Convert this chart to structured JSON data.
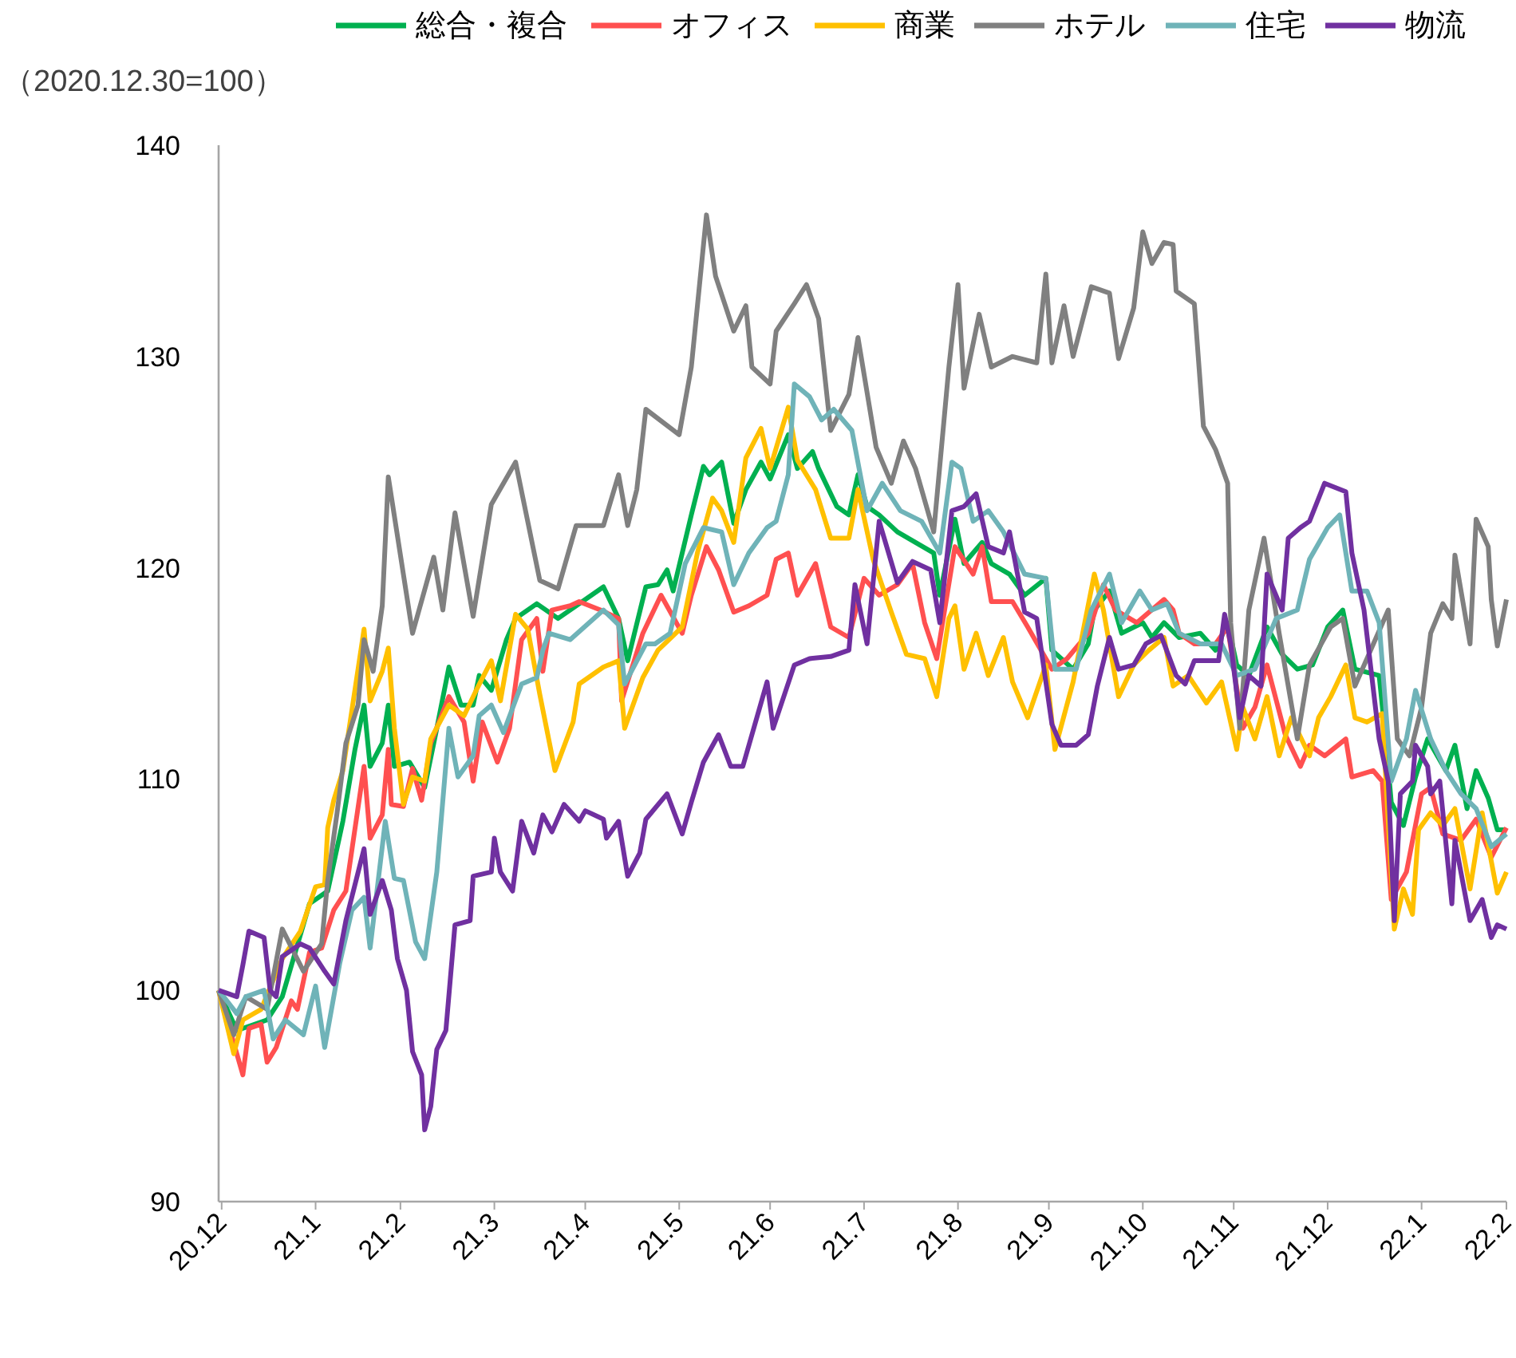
{
  "chart_data": {
    "type": "line",
    "ylabel": "（2020.12.30=100）",
    "legend": "top",
    "xlim": [
      "2020-12-30",
      "2022-02-28"
    ],
    "ylim": [
      90,
      140
    ],
    "yticks": [
      90,
      100,
      110,
      120,
      130,
      140
    ],
    "xticks": [
      {
        "value": "2020-12-31",
        "label": "20.12"
      },
      {
        "value": "2021-01-31",
        "label": "21.1"
      },
      {
        "value": "2021-02-28",
        "label": "21.2"
      },
      {
        "value": "2021-03-31",
        "label": "21.3"
      },
      {
        "value": "2021-04-30",
        "label": "21.4"
      },
      {
        "value": "2021-05-31",
        "label": "21.5"
      },
      {
        "value": "2021-06-30",
        "label": "21.6"
      },
      {
        "value": "2021-07-31",
        "label": "21.7"
      },
      {
        "value": "2021-08-31",
        "label": "21.8"
      },
      {
        "value": "2021-09-30",
        "label": "21.9"
      },
      {
        "value": "2021-10-31",
        "label": "21.10"
      },
      {
        "value": "2021-11-30",
        "label": "21.11"
      },
      {
        "value": "2021-12-31",
        "label": "21.12"
      },
      {
        "value": "2022-01-31",
        "label": "22.1"
      },
      {
        "value": "2022-02-28",
        "label": "22.2"
      }
    ],
    "series": [
      {
        "name": "総合・複合",
        "color": "#00b050",
        "x": [
          "2020-12-30",
          "2021-01-05",
          "2021-01-15",
          "2021-01-20",
          "2021-01-29",
          "2021-02-04",
          "2021-02-09",
          "2021-02-13",
          "2021-02-16",
          "2021-02-18",
          "2021-02-22",
          "2021-02-24",
          "2021-02-26",
          "2021-03-03",
          "2021-03-08",
          "2021-03-12",
          "2021-03-16",
          "2021-03-20",
          "2021-03-24",
          "2021-03-26",
          "2021-03-30",
          "2021-04-04",
          "2021-04-07",
          "2021-04-14",
          "2021-04-21",
          "2021-05-06",
          "2021-05-11",
          "2021-05-14",
          "2021-05-20",
          "2021-05-24",
          "2021-05-27",
          "2021-05-29",
          "2021-06-04",
          "2021-06-08",
          "2021-06-10",
          "2021-06-14",
          "2021-06-18",
          "2021-06-22",
          "2021-06-27",
          "2021-06-30",
          "2021-07-06",
          "2021-07-09",
          "2021-07-14",
          "2021-07-16",
          "2021-07-22",
          "2021-07-26",
          "2021-07-29",
          "2021-08-01",
          "2021-08-05",
          "2021-08-11",
          "2021-08-17",
          "2021-08-23",
          "2021-08-25",
          "2021-08-30",
          "2021-09-02",
          "2021-09-08",
          "2021-09-11",
          "2021-09-17",
          "2021-09-22",
          "2021-09-29",
          "2021-10-01",
          "2021-10-08",
          "2021-10-13",
          "2021-10-15",
          "2021-10-20",
          "2021-10-24",
          "2021-10-31",
          "2021-11-03",
          "2021-11-07",
          "2021-11-12",
          "2021-11-19",
          "2021-11-24",
          "2021-11-28",
          "2021-12-01",
          "2021-12-05",
          "2021-12-11",
          "2021-12-16",
          "2021-12-21",
          "2021-12-26",
          "2021-12-31",
          "2022-01-05",
          "2022-01-09",
          "2022-01-17",
          "2022-01-19",
          "2022-01-21",
          "2022-01-25",
          "2022-01-29",
          "2022-02-02",
          "2022-02-08",
          "2022-02-11",
          "2022-02-15",
          "2022-02-18",
          "2022-02-22",
          "2022-02-25",
          "2022-02-28"
        ],
        "values": [
          100,
          98.1,
          98.6,
          99.7,
          104.1,
          104.7,
          108,
          111.4,
          113.5,
          110.6,
          111.7,
          113.5,
          110.6,
          110.8,
          109.6,
          112.4,
          115.3,
          113.5,
          113.5,
          114.9,
          114.2,
          116.6,
          117.6,
          118.3,
          117.6,
          119.1,
          117.6,
          115.6,
          119.1,
          119.2,
          119.9,
          118.9,
          122.5,
          124.8,
          124.4,
          125,
          122.1,
          123.7,
          125,
          124.2,
          126.3,
          124.7,
          125.5,
          124.7,
          122.9,
          122.5,
          124.4,
          122.9,
          122.5,
          121.7,
          121.2,
          120.7,
          118.7,
          122.3,
          120.2,
          121.2,
          120.2,
          119.7,
          118.7,
          119.5,
          116.1,
          115.2,
          116.4,
          118,
          118.9,
          116.9,
          117.4,
          116.7,
          117.4,
          116.7,
          116.9,
          116.1,
          117.4,
          115.4,
          114.9,
          117.2,
          115.9,
          115.2,
          115.4,
          117.2,
          118,
          115.2,
          114.9,
          112.1,
          108.9,
          107.8,
          110.1,
          111.9,
          110.4,
          111.6,
          108.6,
          110.4,
          109.1,
          107.6,
          107.6
        ]
      },
      {
        "name": "オフィス",
        "color": "#ff5050",
        "x": [
          "2020-12-30",
          "2021-01-07",
          "2021-01-09",
          "2021-01-13",
          "2021-01-15",
          "2021-01-18",
          "2021-01-23",
          "2021-01-25",
          "2021-01-29",
          "2021-02-02",
          "2021-02-06",
          "2021-02-10",
          "2021-02-16",
          "2021-02-18",
          "2021-02-22",
          "2021-02-24",
          "2021-02-25",
          "2021-03-01",
          "2021-03-04",
          "2021-03-07",
          "2021-03-10",
          "2021-03-16",
          "2021-03-21",
          "2021-03-24",
          "2021-03-27",
          "2021-04-01",
          "2021-04-05",
          "2021-04-09",
          "2021-04-14",
          "2021-04-16",
          "2021-04-19",
          "2021-04-25",
          "2021-04-28",
          "2021-05-05",
          "2021-05-11",
          "2021-05-12",
          "2021-05-19",
          "2021-05-25",
          "2021-06-01",
          "2021-06-04",
          "2021-06-09",
          "2021-06-13",
          "2021-06-18",
          "2021-06-23",
          "2021-06-29",
          "2021-07-02",
          "2021-07-06",
          "2021-07-09",
          "2021-07-15",
          "2021-07-20",
          "2021-07-26",
          "2021-07-31",
          "2021-08-05",
          "2021-08-11",
          "2021-08-16",
          "2021-08-20",
          "2021-08-24",
          "2021-08-30",
          "2021-09-05",
          "2021-09-08",
          "2021-09-11",
          "2021-09-18",
          "2021-09-23",
          "2021-10-01",
          "2021-10-06",
          "2021-10-13",
          "2021-10-18",
          "2021-10-22",
          "2021-10-29",
          "2021-11-07",
          "2021-11-10",
          "2021-11-12",
          "2021-11-17",
          "2021-11-24",
          "2021-11-28",
          "2021-12-03",
          "2021-12-07",
          "2021-12-11",
          "2021-12-17",
          "2021-12-22",
          "2021-12-25",
          "2021-12-30",
          "2022-01-06",
          "2022-01-08",
          "2022-01-15",
          "2022-01-18",
          "2022-01-21",
          "2022-01-26",
          "2022-01-31",
          "2022-02-03",
          "2022-02-07",
          "2022-02-13",
          "2022-02-18",
          "2022-02-23",
          "2022-02-28"
        ],
        "values": [
          100,
          96,
          98.2,
          98.4,
          96.6,
          97.3,
          99.5,
          99.1,
          101.8,
          102,
          103.8,
          104.7,
          110.6,
          107.2,
          108.3,
          111.4,
          108.8,
          108.7,
          110.5,
          109,
          111.7,
          113.9,
          112.7,
          109.9,
          112.7,
          110.8,
          112.4,
          116.6,
          117.6,
          115.1,
          118,
          118.2,
          118.4,
          118,
          117.6,
          113.7,
          116.9,
          118.7,
          116.9,
          118.7,
          121,
          119.9,
          117.9,
          118.2,
          118.7,
          120.4,
          120.7,
          118.7,
          120.2,
          117.2,
          116.7,
          119.5,
          118.7,
          119.2,
          120.2,
          117.4,
          115.7,
          121,
          119.7,
          121,
          118.4,
          118.4,
          117.2,
          115.2,
          115.7,
          116.9,
          119.2,
          118,
          117.4,
          118.5,
          118,
          116.9,
          116.4,
          116.4,
          117.2,
          112.4,
          113.4,
          115.4,
          112.1,
          110.6,
          111.6,
          111.1,
          111.9,
          110.1,
          110.4,
          109.9,
          104.3,
          105.6,
          109.3,
          109.6,
          107.4,
          107.1,
          108.1,
          106.3,
          107.7
        ]
      },
      {
        "name": "商業",
        "color": "#ffc000",
        "x": [
          "2020-12-30",
          "2021-01-04",
          "2021-01-07",
          "2021-01-13",
          "2021-01-20",
          "2021-01-26",
          "2021-01-31",
          "2021-02-03",
          "2021-02-04",
          "2021-02-06",
          "2021-02-09",
          "2021-02-16",
          "2021-02-18",
          "2021-02-22",
          "2021-02-24",
          "2021-02-26",
          "2021-03-01",
          "2021-03-04",
          "2021-03-08",
          "2021-03-10",
          "2021-03-16",
          "2021-03-21",
          "2021-03-25",
          "2021-03-30",
          "2021-04-02",
          "2021-04-07",
          "2021-04-11",
          "2021-04-15",
          "2021-04-20",
          "2021-04-26",
          "2021-04-28",
          "2021-05-06",
          "2021-05-11",
          "2021-05-13",
          "2021-05-19",
          "2021-05-24",
          "2021-06-01",
          "2021-06-06",
          "2021-06-11",
          "2021-06-14",
          "2021-06-18",
          "2021-06-22",
          "2021-06-27",
          "2021-06-30",
          "2021-07-06",
          "2021-07-09",
          "2021-07-15",
          "2021-07-20",
          "2021-07-26",
          "2021-07-29",
          "2021-08-03",
          "2021-08-09",
          "2021-08-14",
          "2021-08-20",
          "2021-08-24",
          "2021-08-28",
          "2021-08-30",
          "2021-09-02",
          "2021-09-06",
          "2021-09-10",
          "2021-09-15",
          "2021-09-18",
          "2021-09-23",
          "2021-09-29",
          "2021-10-02",
          "2021-10-08",
          "2021-10-15",
          "2021-10-18",
          "2021-10-23",
          "2021-10-28",
          "2021-11-02",
          "2021-11-07",
          "2021-11-10",
          "2021-11-15",
          "2021-11-21",
          "2021-11-26",
          "2021-12-01",
          "2021-12-03",
          "2021-12-07",
          "2021-12-11",
          "2021-12-15",
          "2021-12-19",
          "2021-12-25",
          "2021-12-28",
          "2022-01-01",
          "2022-01-06",
          "2022-01-09",
          "2022-01-13",
          "2022-01-18",
          "2022-01-22",
          "2022-01-25",
          "2022-01-28",
          "2022-01-30",
          "2022-02-03",
          "2022-02-07",
          "2022-02-11",
          "2022-02-16",
          "2022-02-20",
          "2022-02-25",
          "2022-02-28"
        ],
        "values": [
          100,
          97,
          98.6,
          99.1,
          101.5,
          102.8,
          104.9,
          105,
          107.7,
          109,
          110.4,
          117.1,
          113.7,
          115.1,
          116.2,
          112.4,
          108.8,
          110.1,
          109.9,
          111.9,
          113.5,
          113,
          114.2,
          115.6,
          113.7,
          117.8,
          117.1,
          114,
          110.4,
          112.7,
          114.5,
          115.3,
          115.6,
          112.4,
          114.8,
          116.1,
          117.2,
          120.7,
          123.3,
          122.7,
          121.2,
          125.2,
          126.6,
          124.7,
          127.6,
          125.1,
          123.7,
          121.4,
          121.4,
          123.7,
          120.4,
          117.9,
          115.9,
          115.7,
          113.9,
          117.6,
          118.2,
          115.2,
          116.9,
          114.9,
          116.7,
          114.6,
          112.9,
          115.4,
          111.4,
          114.6,
          119.7,
          118,
          113.9,
          115.4,
          116.1,
          116.7,
          114.4,
          114.9,
          113.6,
          114.6,
          111.4,
          113.4,
          111.9,
          113.9,
          111.1,
          112.9,
          111.1,
          112.9,
          113.9,
          115.4,
          112.9,
          112.7,
          113.1,
          102.9,
          104.8,
          103.6,
          107.6,
          108.4,
          107.8,
          108.6,
          104.8,
          108.4,
          104.6,
          105.6
        ]
      },
      {
        "name": "ホテル",
        "color": "#808080",
        "x": [
          "2020-12-30",
          "2021-01-04",
          "2021-01-08",
          "2021-01-15",
          "2021-01-20",
          "2021-01-27",
          "2021-02-02",
          "2021-02-04",
          "2021-02-07",
          "2021-02-10",
          "2021-02-14",
          "2021-02-16",
          "2021-02-19",
          "2021-02-22",
          "2021-02-24",
          "2021-03-04",
          "2021-03-11",
          "2021-03-14",
          "2021-03-18",
          "2021-03-24",
          "2021-03-30",
          "2021-04-07",
          "2021-04-15",
          "2021-04-21",
          "2021-04-27",
          "2021-05-06",
          "2021-05-11",
          "2021-05-14",
          "2021-05-17",
          "2021-05-20",
          "2021-05-31",
          "2021-06-04",
          "2021-06-09",
          "2021-06-12",
          "2021-06-18",
          "2021-06-22",
          "2021-06-24",
          "2021-06-30",
          "2021-07-02",
          "2021-07-08",
          "2021-07-12",
          "2021-07-16",
          "2021-07-20",
          "2021-07-26",
          "2021-07-29",
          "2021-08-04",
          "2021-08-09",
          "2021-08-13",
          "2021-08-17",
          "2021-08-23",
          "2021-08-28",
          "2021-08-31",
          "2021-09-02",
          "2021-09-07",
          "2021-09-11",
          "2021-09-18",
          "2021-09-26",
          "2021-09-29",
          "2021-10-01",
          "2021-10-05",
          "2021-10-08",
          "2021-10-14",
          "2021-10-20",
          "2021-10-23",
          "2021-10-28",
          "2021-10-31",
          "2021-11-03",
          "2021-11-07",
          "2021-11-10",
          "2021-11-11",
          "2021-11-17",
          "2021-11-20",
          "2021-11-24",
          "2021-11-28",
          "2021-11-29",
          "2021-12-02",
          "2021-12-05",
          "2021-12-10",
          "2021-12-15",
          "2021-12-21",
          "2021-12-25",
          "2022-01-01",
          "2022-01-05",
          "2022-01-09",
          "2022-01-20",
          "2022-01-23",
          "2022-01-27",
          "2022-01-31",
          "2022-02-03",
          "2022-02-07",
          "2022-02-10",
          "2022-02-11",
          "2022-02-16",
          "2022-02-18",
          "2022-02-22",
          "2022-02-23",
          "2022-02-25",
          "2022-02-28"
        ],
        "values": [
          100,
          97.9,
          99.7,
          99.1,
          102.9,
          100.9,
          102.2,
          105.2,
          108.3,
          111.7,
          113.5,
          116.6,
          115.1,
          118.2,
          124.3,
          116.9,
          120.5,
          118,
          122.6,
          117.7,
          123,
          125,
          119.4,
          119,
          122,
          122,
          124.4,
          122,
          123.7,
          127.5,
          126.3,
          129.5,
          136.7,
          133.8,
          131.2,
          132.4,
          129.5,
          128.7,
          131.2,
          132.5,
          133.4,
          131.8,
          126.5,
          128.2,
          130.9,
          125.7,
          124,
          126,
          124.7,
          121.7,
          129.5,
          133.4,
          128.5,
          132,
          129.5,
          130,
          129.7,
          133.9,
          129.7,
          132.4,
          130,
          133.3,
          133,
          129.9,
          132.3,
          135.9,
          134.4,
          135.4,
          135.3,
          133.1,
          132.5,
          126.7,
          125.6,
          124,
          117.4,
          112.4,
          118,
          121.4,
          116.9,
          111.9,
          115.4,
          117.2,
          117.6,
          114.4,
          118,
          111.9,
          111.1,
          113.4,
          116.9,
          118.3,
          117.6,
          120.6,
          116.4,
          122.3,
          121,
          118.5,
          116.3,
          118.5
        ]
      },
      {
        "name": "住宅",
        "color": "#6fb3b8",
        "x": [
          "2020-12-30",
          "2021-01-05",
          "2021-01-08",
          "2021-01-14",
          "2021-01-17",
          "2021-01-21",
          "2021-01-27",
          "2021-01-31",
          "2021-02-03",
          "2021-02-08",
          "2021-02-12",
          "2021-02-16",
          "2021-02-18",
          "2021-02-23",
          "2021-02-26",
          "2021-03-01",
          "2021-03-05",
          "2021-03-08",
          "2021-03-12",
          "2021-03-16",
          "2021-03-19",
          "2021-03-24",
          "2021-03-26",
          "2021-03-30",
          "2021-04-03",
          "2021-04-09",
          "2021-04-14",
          "2021-04-16",
          "2021-04-18",
          "2021-04-25",
          "2021-05-06",
          "2021-05-11",
          "2021-05-13",
          "2021-05-20",
          "2021-05-23",
          "2021-05-28",
          "2021-06-02",
          "2021-06-08",
          "2021-06-14",
          "2021-06-18",
          "2021-06-23",
          "2021-06-29",
          "2021-07-02",
          "2021-07-06",
          "2021-07-08",
          "2021-07-13",
          "2021-07-17",
          "2021-07-21",
          "2021-07-27",
          "2021-08-01",
          "2021-08-06",
          "2021-08-12",
          "2021-08-19",
          "2021-08-25",
          "2021-08-29",
          "2021-09-01",
          "2021-09-05",
          "2021-09-10",
          "2021-09-15",
          "2021-09-22",
          "2021-09-29",
          "2021-10-02",
          "2021-10-09",
          "2021-10-14",
          "2021-10-20",
          "2021-10-24",
          "2021-10-30",
          "2021-11-03",
          "2021-11-08",
          "2021-11-12",
          "2021-11-19",
          "2021-11-26",
          "2021-12-01",
          "2021-12-07",
          "2021-12-14",
          "2021-12-21",
          "2021-12-25",
          "2021-12-31",
          "2022-01-04",
          "2022-01-08",
          "2022-01-13",
          "2022-01-17",
          "2022-01-21",
          "2022-01-26",
          "2022-01-29",
          "2022-02-03",
          "2022-02-08",
          "2022-02-13",
          "2022-02-18",
          "2022-02-23",
          "2022-02-28"
        ],
        "values": [
          100,
          98.9,
          99.7,
          100,
          97.7,
          98.6,
          97.9,
          100.2,
          97.3,
          101.3,
          103.8,
          104.4,
          102,
          108,
          105.3,
          105.2,
          102.3,
          101.5,
          105.6,
          112.4,
          110.1,
          111.1,
          113,
          113.5,
          112.2,
          114.5,
          114.8,
          116.1,
          116.9,
          116.6,
          118,
          117.3,
          114.5,
          116.4,
          116.4,
          116.9,
          120.2,
          121.9,
          121.7,
          119.2,
          120.7,
          121.9,
          122.2,
          124.4,
          128.7,
          128.1,
          127,
          127.5,
          126.5,
          122.7,
          124,
          122.7,
          122.2,
          120.7,
          125,
          124.7,
          122.2,
          122.7,
          121.7,
          119.7,
          119.5,
          115.2,
          115.2,
          118,
          119.7,
          117.4,
          118.9,
          118,
          118.3,
          116.9,
          116.4,
          116.4,
          114.9,
          115.2,
          117.6,
          118,
          120.4,
          121.9,
          122.5,
          118.9,
          118.9,
          117.4,
          109.9,
          111.9,
          114.2,
          111.9,
          110.4,
          109.3,
          108.6,
          106.8,
          107.4
        ]
      },
      {
        "name": "物流",
        "color": "#7030a0",
        "x": [
          "2020-12-30",
          "2021-01-05",
          "2021-01-07",
          "2021-01-09",
          "2021-01-14",
          "2021-01-16",
          "2021-01-18",
          "2021-01-20",
          "2021-01-26",
          "2021-01-29",
          "2021-02-03",
          "2021-02-06",
          "2021-02-10",
          "2021-02-16",
          "2021-02-18",
          "2021-02-22",
          "2021-02-25",
          "2021-02-27",
          "2021-03-02",
          "2021-03-04",
          "2021-03-07",
          "2021-03-08",
          "2021-03-10",
          "2021-03-12",
          "2021-03-15",
          "2021-03-18",
          "2021-03-23",
          "2021-03-24",
          "2021-03-30",
          "2021-03-31",
          "2021-04-02",
          "2021-04-06",
          "2021-04-09",
          "2021-04-13",
          "2021-04-16",
          "2021-04-19",
          "2021-04-23",
          "2021-04-28",
          "2021-04-30",
          "2021-05-06",
          "2021-05-07",
          "2021-05-11",
          "2021-05-14",
          "2021-05-18",
          "2021-05-20",
          "2021-05-27",
          "2021-06-01",
          "2021-06-04",
          "2021-06-08",
          "2021-06-13",
          "2021-06-17",
          "2021-06-21",
          "2021-06-29",
          "2021-07-01",
          "2021-07-08",
          "2021-07-13",
          "2021-07-20",
          "2021-07-26",
          "2021-07-28",
          "2021-08-01",
          "2021-08-05",
          "2021-08-11",
          "2021-08-16",
          "2021-08-22",
          "2021-08-25",
          "2021-08-29",
          "2021-09-02",
          "2021-09-06",
          "2021-09-10",
          "2021-09-15",
          "2021-09-17",
          "2021-09-22",
          "2021-09-26",
          "2021-10-01",
          "2021-10-04",
          "2021-10-09",
          "2021-10-13",
          "2021-10-16",
          "2021-10-20",
          "2021-10-23",
          "2021-10-28",
          "2021-11-01",
          "2021-11-06",
          "2021-11-11",
          "2021-11-14",
          "2021-11-17",
          "2021-11-25",
          "2021-11-27",
          "2021-11-29",
          "2021-12-02",
          "2021-12-05",
          "2021-12-09",
          "2021-12-11",
          "2021-12-16",
          "2021-12-18",
          "2021-12-22",
          "2021-12-25",
          "2021-12-30",
          "2022-01-06",
          "2022-01-08",
          "2022-01-12",
          "2022-01-17",
          "2022-01-20",
          "2022-01-22",
          "2022-01-24",
          "2022-01-28",
          "2022-01-29",
          "2022-02-02",
          "2022-02-03",
          "2022-02-06",
          "2022-02-10",
          "2022-02-11",
          "2022-02-16",
          "2022-02-20",
          "2022-02-23",
          "2022-02-25",
          "2022-02-28"
        ],
        "values": [
          100,
          99.7,
          101.2,
          102.8,
          102.5,
          100,
          99.7,
          101.6,
          102.2,
          102,
          100.9,
          100.3,
          103.3,
          106.7,
          103.6,
          105.2,
          103.8,
          101.5,
          100,
          97.1,
          96,
          93.4,
          94.5,
          97.2,
          98.1,
          103.1,
          103.3,
          105.4,
          105.6,
          107.2,
          105.6,
          104.7,
          108,
          106.5,
          108.3,
          107.5,
          108.8,
          108,
          108.5,
          108.1,
          107.2,
          108,
          105.4,
          106.5,
          108.1,
          109.3,
          107.4,
          108.9,
          110.8,
          112.1,
          110.6,
          110.6,
          114.6,
          112.4,
          115.4,
          115.7,
          115.8,
          116.1,
          119.2,
          116.4,
          122.2,
          119.3,
          120.3,
          119.9,
          117.4,
          122.7,
          122.9,
          123.5,
          121,
          120.7,
          121.7,
          117.9,
          117.6,
          112.6,
          111.6,
          111.6,
          112.1,
          114.4,
          116.7,
          115.2,
          115.4,
          116.4,
          116.8,
          114.9,
          114.5,
          115.6,
          115.6,
          117.8,
          116.4,
          112.9,
          114.9,
          114.4,
          119.7,
          118,
          121.4,
          121.9,
          122.2,
          124,
          123.6,
          120.7,
          118,
          111.9,
          109.9,
          103.3,
          109.3,
          109.9,
          111.6,
          110.6,
          109.3,
          109.9,
          104.1,
          107.1,
          103.3,
          104.3,
          102.5,
          103.1,
          102.9
        ]
      }
    ]
  }
}
